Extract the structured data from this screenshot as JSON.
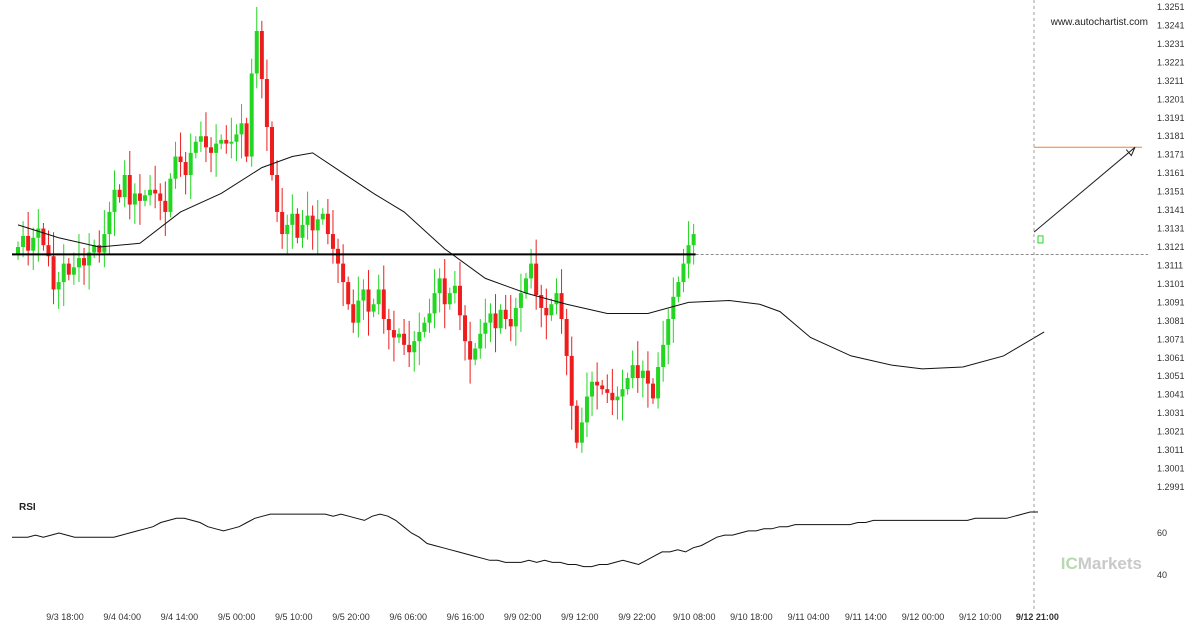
{
  "watermark": "www.autochartist.com",
  "brand": {
    "prefix": "IC",
    "suffix": "Markets"
  },
  "chart_data": [
    {
      "type": "candlestick",
      "title": "",
      "ylim": [
        1.2985,
        1.3253
      ],
      "y_ticks": [
        "1.3251",
        "1.3241",
        "1.3231",
        "1.3221",
        "1.3211",
        "1.3201",
        "1.3191",
        "1.3181",
        "1.3171",
        "1.3161",
        "1.3151",
        "1.3141",
        "1.3131",
        "1.3121",
        "1.3111",
        "1.3101",
        "1.3091",
        "1.3081",
        "1.3071",
        "1.3061",
        "1.3051",
        "1.3041",
        "1.3031",
        "1.3021",
        "1.3011",
        "1.3001",
        "1.2991"
      ],
      "x_ticks": [
        "9/3 18:00",
        "9/4 04:00",
        "9/4 14:00",
        "9/5 00:00",
        "9/5 10:00",
        "9/5 20:00",
        "9/6 06:00",
        "9/6 16:00",
        "9/9 02:00",
        "9/9 12:00",
        "9/9 22:00",
        "9/10 08:00",
        "9/10 18:00",
        "9/11 04:00",
        "9/11 14:00",
        "9/12 00:00",
        "9/12 10:00",
        "9/12 21:00"
      ],
      "close_path": [
        1.3121,
        1.3127,
        1.3119,
        1.3126,
        1.3131,
        1.3122,
        1.3116,
        1.3098,
        1.3102,
        1.3112,
        1.3106,
        1.311,
        1.3115,
        1.3111,
        1.3118,
        1.3122,
        1.3118,
        1.3128,
        1.314,
        1.3152,
        1.3148,
        1.316,
        1.3144,
        1.315,
        1.3146,
        1.3149,
        1.3152,
        1.315,
        1.3146,
        1.314,
        1.3158,
        1.317,
        1.3167,
        1.316,
        1.3172,
        1.3178,
        1.3181,
        1.3175,
        1.3172,
        1.3177,
        1.3179,
        1.3177,
        1.3178,
        1.3182,
        1.3188,
        1.317,
        1.3215,
        1.3238,
        1.3212,
        1.3186,
        1.316,
        1.314,
        1.3128,
        1.3133,
        1.3139,
        1.3126,
        1.3133,
        1.3138,
        1.313,
        1.3136,
        1.3139,
        1.3128,
        1.312,
        1.3112,
        1.3102,
        1.309,
        1.308,
        1.3092,
        1.3098,
        1.3086,
        1.309,
        1.3098,
        1.3082,
        1.3076,
        1.3072,
        1.3074,
        1.3068,
        1.3064,
        1.307,
        1.3075,
        1.308,
        1.3085,
        1.3096,
        1.3104,
        1.309,
        1.3096,
        1.31,
        1.3084,
        1.307,
        1.306,
        1.3066,
        1.3074,
        1.308,
        1.3085,
        1.3077,
        1.3087,
        1.3082,
        1.3078,
        1.3088,
        1.3096,
        1.3104,
        1.3112,
        1.3095,
        1.3088,
        1.3084,
        1.309,
        1.3096,
        1.3082,
        1.3062,
        1.3035,
        1.3015,
        1.3026,
        1.304,
        1.3048,
        1.3046,
        1.3044,
        1.3042,
        1.3038,
        1.304,
        1.3044,
        1.305,
        1.3057,
        1.305,
        1.3054,
        1.3047,
        1.3039,
        1.3056,
        1.3068,
        1.3082,
        1.3094,
        1.3102,
        1.3112,
        1.3122,
        1.3128
      ],
      "moving_average": [
        [
          0,
          1.3133
        ],
        [
          8,
          1.3126
        ],
        [
          16,
          1.3121
        ],
        [
          24,
          1.3123
        ],
        [
          32,
          1.314
        ],
        [
          40,
          1.315
        ],
        [
          48,
          1.3164
        ],
        [
          54,
          1.317
        ],
        [
          58,
          1.3172
        ],
        [
          64,
          1.3161
        ],
        [
          70,
          1.315
        ],
        [
          76,
          1.314
        ],
        [
          84,
          1.312
        ],
        [
          92,
          1.3104
        ],
        [
          100,
          1.3096
        ],
        [
          108,
          1.309
        ],
        [
          116,
          1.3085
        ],
        [
          124,
          1.3085
        ],
        [
          132,
          1.3091
        ],
        [
          140,
          1.3092
        ],
        [
          146,
          1.309
        ],
        [
          150,
          1.3086
        ],
        [
          156,
          1.3072
        ],
        [
          164,
          1.3062
        ],
        [
          172,
          1.3057
        ],
        [
          178,
          1.3055
        ],
        [
          186,
          1.3056
        ],
        [
          194,
          1.3062
        ],
        [
          202,
          1.3075
        ]
      ],
      "support_level": 1.3117,
      "target_level": 1.3175,
      "forecast_arrow": [
        1.3128,
        1.3175
      ],
      "last_price": 1.3117
    },
    {
      "type": "line",
      "title": "RSI",
      "ylim": [
        35,
        80
      ],
      "y_ticks": [
        "60",
        "40"
      ],
      "values": [
        58,
        58,
        58,
        59,
        58,
        59,
        60,
        59,
        58,
        58,
        58,
        58,
        58,
        58,
        59,
        60,
        61,
        62,
        63,
        65,
        66,
        67,
        67,
        66,
        65,
        63,
        62,
        61,
        62,
        63,
        65,
        67,
        68,
        69,
        69,
        69,
        69,
        69,
        69,
        69,
        69,
        68,
        69,
        68,
        67,
        66,
        68,
        69,
        68,
        66,
        63,
        60,
        58,
        55,
        54,
        53,
        52,
        51,
        50,
        49,
        48,
        47,
        47,
        46,
        46,
        46,
        47,
        46,
        47,
        46,
        46,
        45,
        45,
        44,
        44,
        45,
        45,
        46,
        47,
        46,
        45,
        47,
        49,
        51,
        51,
        52,
        51,
        53,
        54,
        56,
        58,
        59,
        59,
        60,
        61,
        61,
        62,
        62,
        63,
        63,
        64,
        64,
        64,
        64,
        64,
        64,
        64,
        64,
        65,
        65,
        66,
        66,
        66,
        66,
        66,
        66,
        66,
        66,
        66,
        66,
        66,
        66,
        66,
        67,
        67,
        67,
        67,
        67,
        68,
        69,
        70,
        70
      ]
    }
  ]
}
